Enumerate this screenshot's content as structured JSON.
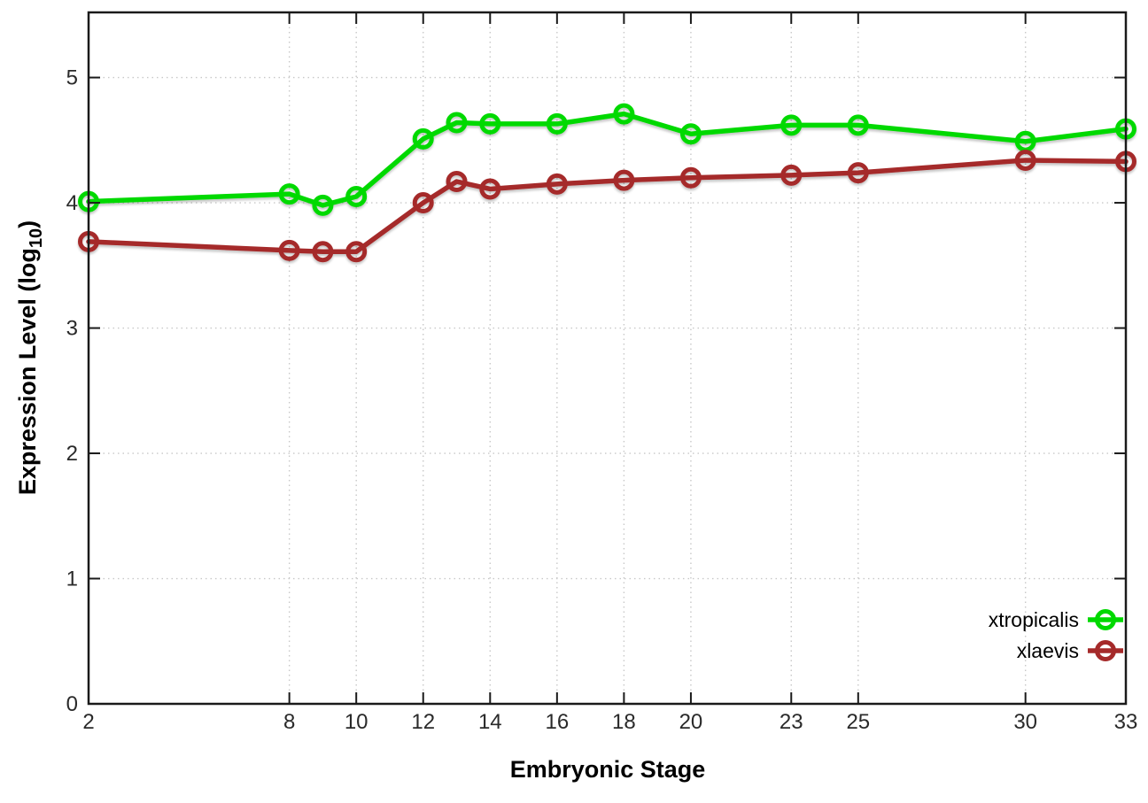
{
  "chart_data": {
    "type": "line",
    "title": "",
    "xlabel": "Embryonic Stage",
    "ylabel": "Expression Level (log10)",
    "ylabel_parts": {
      "prefix": "Expression Level (log",
      "sub": "10",
      "suffix": ")"
    },
    "x": [
      2,
      8,
      9,
      10,
      12,
      13,
      14,
      16,
      18,
      20,
      23,
      25,
      30,
      33
    ],
    "series": [
      {
        "name": "xtropicalis",
        "color": "#00d900",
        "values": [
          4.01,
          4.07,
          3.98,
          4.05,
          4.51,
          4.64,
          4.63,
          4.63,
          4.71,
          4.55,
          4.62,
          4.62,
          4.49,
          4.59
        ]
      },
      {
        "name": "xlaevis",
        "color": "#a52a2a",
        "values": [
          3.69,
          3.62,
          3.61,
          3.61,
          4.0,
          4.17,
          4.11,
          4.15,
          4.18,
          4.2,
          4.22,
          4.24,
          4.34,
          4.33
        ]
      }
    ],
    "x_ticks": [
      2,
      8,
      10,
      12,
      14,
      16,
      18,
      20,
      23,
      25,
      30,
      33
    ],
    "y_ticks": [
      0,
      1,
      2,
      3,
      4,
      5
    ],
    "xlim": [
      2,
      33
    ],
    "ylim": [
      0,
      5.52
    ],
    "grid": true,
    "grid_color": "#c8c8c8",
    "axis_color": "#1a1a1a",
    "legend_position": "bottom-right",
    "legend_entries": [
      "xtropicalis",
      "xlaevis"
    ]
  }
}
